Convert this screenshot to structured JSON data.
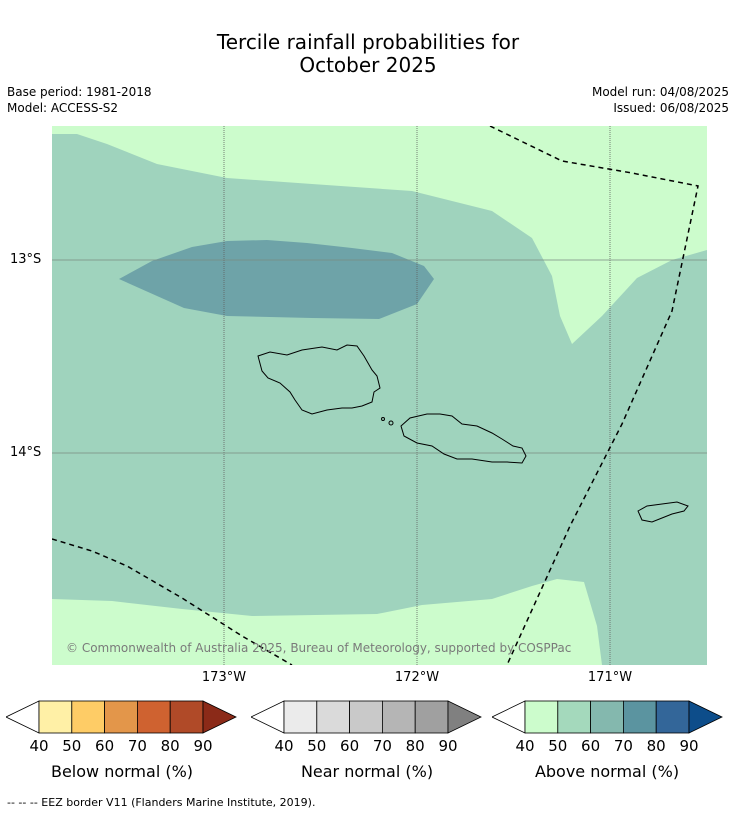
{
  "title_line1": "Tercile rainfall probabilities for",
  "title_line2": "October 2025",
  "base_period": "Base period: 1981-2018",
  "model": "Model: ACCESS-S2",
  "model_run": "Model run: 04/08/2025",
  "issued": "Issued: 06/08/2025",
  "lon_labels": [
    "173°W",
    "172°W",
    "171°W"
  ],
  "lat_labels": [
    "13°S",
    "14°S"
  ],
  "copyright": "© Commonwealth of Australia 2025, Bureau of Meteorology, supported by COSPPac",
  "colorbars": [
    {
      "title": "Below normal (%)",
      "ticks": [
        "40",
        "50",
        "60",
        "70",
        "80",
        "90"
      ],
      "colors": [
        "#fff0a6",
        "#fecc66",
        "#e3964a",
        "#cf6230",
        "#b04a28",
        "#8b2a18"
      ]
    },
    {
      "title": "Near normal (%)",
      "ticks": [
        "40",
        "50",
        "60",
        "70",
        "80",
        "90"
      ],
      "colors": [
        "#ebebeb",
        "#dadada",
        "#c9c9c9",
        "#b5b5b5",
        "#a0a0a0",
        "#808080"
      ]
    },
    {
      "title": "Above normal (%)",
      "ticks": [
        "40",
        "50",
        "60",
        "70",
        "80",
        "90"
      ],
      "colors": [
        "#ccfccc",
        "#a4d9bc",
        "#84b8ae",
        "#5b94a0",
        "#336699",
        "#0d4d8a"
      ]
    }
  ],
  "footer": "--  --  -- EEZ border V11 (Flanders Marine Institute, 2019).",
  "colors": {
    "above_40_50": "#ccfccc",
    "above_50_60": "#9fd3bd",
    "above_60_70": "#6ea3a8",
    "grid": "#606060"
  }
}
